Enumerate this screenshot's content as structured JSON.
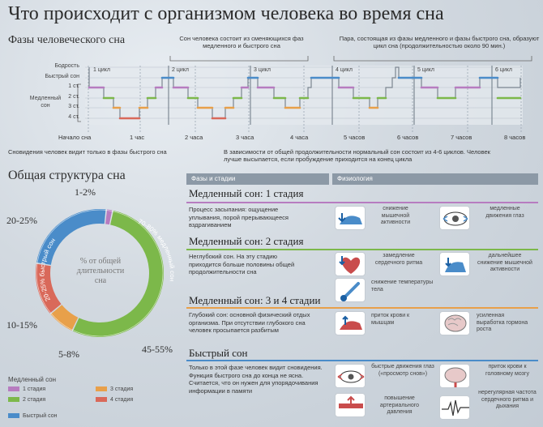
{
  "title": "Что происходит с организмом человека во время сна",
  "phases_section": {
    "title": "Фазы человеческого сна",
    "note_left": "Сон человека состоит из сменяющихся фаз медленного и быстрого сна",
    "note_right": "Пара, состоящая из фазы медленного и фазы быстрого сна, образуют цикл сна (продолжительностью около 90 мин.)",
    "y_labels": [
      "Бодрость",
      "Быстрый сон",
      "1 ст.",
      "2 ст.",
      "3 ст.",
      "4 ст."
    ],
    "slow_sleep_label": "Медленный сон",
    "cycles": [
      "1 цикл",
      "2 цикл",
      "3 цикл",
      "4 цикл",
      "5 цикл",
      "6 цикл"
    ],
    "time_labels": [
      "Начало сна",
      "1 час",
      "2 часа",
      "3 часа",
      "4 часа",
      "5 часов",
      "6 часов",
      "7 часов",
      "8 часов"
    ],
    "caption_left": "Сновидения человек видит только в фазы быстрого сна",
    "caption_right": "В зависимости от общей продолжительности нормальный сон состоит из 4-6 циклов. Человек лучше высыпается, если пробуждение приходится на конец цикла"
  },
  "structure": {
    "title": "Общая структура сна",
    "center_label": "% от общей длительности сна",
    "labels": {
      "one": "1-2%",
      "two": "20-25%",
      "three": "10-15%",
      "four": "5-8%",
      "five": "45-55%"
    },
    "ring_text_green": "70-80% медленный сон",
    "ring_text_blue": "20-25% быстрый сон",
    "legend_title": "Медленный сон",
    "legend": [
      {
        "label": "1 стадия",
        "color": "#b77cc0"
      },
      {
        "label": "2 стадия",
        "color": "#7cb84a"
      },
      {
        "label": "3 стадия",
        "color": "#e8a04a"
      },
      {
        "label": "4 стадия",
        "color": "#d9695a"
      },
      {
        "label": "Быстрый сон",
        "color": "#4a8cc9"
      }
    ]
  },
  "chart_data": {
    "type": "pie",
    "title": "Общая структура сна",
    "categories": [
      "1 стадия",
      "2 стадия",
      "3 стадия",
      "4 стадия",
      "Быстрый сон"
    ],
    "values": [
      1.5,
      50,
      6.5,
      12.5,
      22.5
    ],
    "colors": [
      "#b77cc0",
      "#7cb84a",
      "#e8a04a",
      "#d9695a",
      "#4a8cc9"
    ]
  },
  "table": {
    "col_phases": "Фазы и стадии",
    "col_phys": "Физиология",
    "sections": [
      {
        "title": "Медленный сон: 1 стадия",
        "color": "#b77cc0",
        "text": "Процесс засыпания: ощущение уплывания, порой прерывающееся вздрагиванием",
        "items": [
          "снижение мышечной активности",
          "медленные движения глаз"
        ]
      },
      {
        "title": "Медленный сон: 2 стадия",
        "color": "#7cb84a",
        "text": "Неглубокий сон. На эту стадию приходится больше половины общей продолжительности сна",
        "items": [
          "замедление сердечного ритма",
          "дальнейшее снижение мышечной активности",
          "снижение температуры тела"
        ]
      },
      {
        "title": "Медленный сон: 3 и 4 стадии",
        "color": "#e8a04a",
        "text": "Глубокий сон: основной физический отдых организма. При отсутствии глубокого сна человек просыпается разбитым",
        "items": [
          "приток крови к мышцам",
          "усиленная выработка гормона роста"
        ]
      },
      {
        "title": "Быстрый сон",
        "color": "#4a8cc9",
        "text": "Только в этой фазе человек видит сновидения. Функция быстрого сна до конца не ясна. Считается, что он нужен для упорядочивания информации в памяти",
        "items": [
          "быстрые движения глаз («просмотр снов»)",
          "приток крови к головному мозгу",
          "повышение артериального давления",
          "нерегулярная частота сердечного ритма и дыхания"
        ]
      }
    ]
  }
}
